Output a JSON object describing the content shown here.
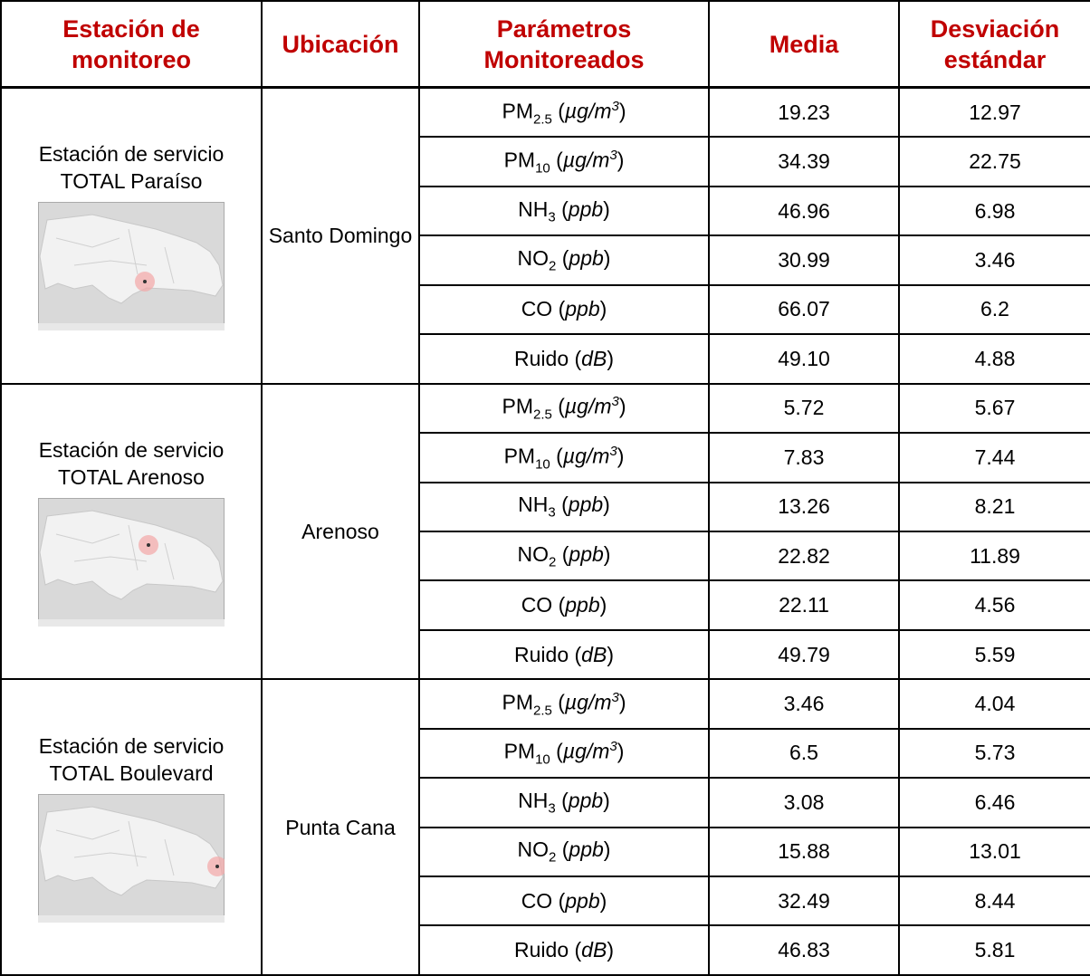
{
  "header": [
    "Estación de monitoreo",
    "Ubicación",
    "Parámetros Monitoreados",
    "Media",
    "Desviación estándar"
  ],
  "stations": [
    {
      "name": "Estación de servicio TOTAL Paraíso",
      "location": "Santo Domingo",
      "measurements": [
        {
          "parameter": [
            {
              "text": "PM"
            },
            {
              "text": "2.5",
              "style": "sub"
            },
            {
              "text": " ("
            },
            {
              "text": "µg/m",
              "style": "i"
            },
            {
              "text": "3",
              "style": "sup"
            },
            {
              "text": ")"
            }
          ],
          "mean": "19.23",
          "sd": "12.97"
        },
        {
          "parameter": [
            {
              "text": "PM"
            },
            {
              "text": "10",
              "style": "sub"
            },
            {
              "text": " ("
            },
            {
              "text": "µg/m",
              "style": "i"
            },
            {
              "text": "3",
              "style": "sup"
            },
            {
              "text": ")"
            }
          ],
          "mean": "34.39",
          "sd": "22.75"
        },
        {
          "parameter": [
            {
              "text": "NH"
            },
            {
              "text": "3",
              "style": "sub"
            },
            {
              "text": " ("
            },
            {
              "text": "ppb",
              "style": "i"
            },
            {
              "text": ")"
            }
          ],
          "mean": "46.96",
          "sd": "6.98"
        },
        {
          "parameter": [
            {
              "text": "NO"
            },
            {
              "text": "2",
              "style": "sub"
            },
            {
              "text": " ("
            },
            {
              "text": "ppb",
              "style": "i"
            },
            {
              "text": ")"
            }
          ],
          "mean": "30.99",
          "sd": "3.46"
        },
        {
          "parameter": [
            {
              "text": "CO ("
            },
            {
              "text": "ppb",
              "style": "i"
            },
            {
              "text": ")"
            }
          ],
          "mean": "66.07",
          "sd": "6.2"
        },
        {
          "parameter": [
            {
              "text": "Ruido ("
            },
            {
              "text": "dB",
              "style": "i"
            },
            {
              "text": ")"
            }
          ],
          "mean": "49.10",
          "sd": "4.88"
        }
      ]
    },
    {
      "name": "Estación de servicio TOTAL Arenoso",
      "location": "Arenoso",
      "measurements": [
        {
          "parameter": [
            {
              "text": "PM"
            },
            {
              "text": "2.5",
              "style": "sub"
            },
            {
              "text": " ("
            },
            {
              "text": "µg/m",
              "style": "i"
            },
            {
              "text": "3",
              "style": "sup"
            },
            {
              "text": ")"
            }
          ],
          "mean": "5.72",
          "sd": "5.67"
        },
        {
          "parameter": [
            {
              "text": "PM"
            },
            {
              "text": "10",
              "style": "sub"
            },
            {
              "text": " ("
            },
            {
              "text": "µg/m",
              "style": "i"
            },
            {
              "text": "3",
              "style": "sup"
            },
            {
              "text": ")"
            }
          ],
          "mean": "7.83",
          "sd": "7.44"
        },
        {
          "parameter": [
            {
              "text": "NH"
            },
            {
              "text": "3",
              "style": "sub"
            },
            {
              "text": " ("
            },
            {
              "text": "ppb",
              "style": "i"
            },
            {
              "text": ")"
            }
          ],
          "mean": "13.26",
          "sd": "8.21"
        },
        {
          "parameter": [
            {
              "text": "NO"
            },
            {
              "text": "2",
              "style": "sub"
            },
            {
              "text": " ("
            },
            {
              "text": "ppb",
              "style": "i"
            },
            {
              "text": ")"
            }
          ],
          "mean": "22.82",
          "sd": "11.89"
        },
        {
          "parameter": [
            {
              "text": "CO ("
            },
            {
              "text": "ppb",
              "style": "i"
            },
            {
              "text": ")"
            }
          ],
          "mean": "22.11",
          "sd": "4.56"
        },
        {
          "parameter": [
            {
              "text": "Ruido ("
            },
            {
              "text": "dB",
              "style": "i"
            },
            {
              "text": ")"
            }
          ],
          "mean": "49.79",
          "sd": "5.59"
        }
      ]
    },
    {
      "name": "Estación de servicio TOTAL Boulevard",
      "location": "Punta Cana",
      "measurements": [
        {
          "parameter": [
            {
              "text": "PM"
            },
            {
              "text": "2.5",
              "style": "sub"
            },
            {
              "text": " ("
            },
            {
              "text": "µg/m",
              "style": "i"
            },
            {
              "text": "3",
              "style": "sup"
            },
            {
              "text": ")"
            }
          ],
          "mean": "3.46",
          "sd": "4.04"
        },
        {
          "parameter": [
            {
              "text": "PM"
            },
            {
              "text": "10",
              "style": "sub"
            },
            {
              "text": " ("
            },
            {
              "text": "µg/m",
              "style": "i"
            },
            {
              "text": "3",
              "style": "sup"
            },
            {
              "text": ")"
            }
          ],
          "mean": "6.5",
          "sd": "5.73"
        },
        {
          "parameter": [
            {
              "text": "NH"
            },
            {
              "text": "3",
              "style": "sub"
            },
            {
              "text": " ("
            },
            {
              "text": "ppb",
              "style": "i"
            },
            {
              "text": ")"
            }
          ],
          "mean": "3.08",
          "sd": "6.46"
        },
        {
          "parameter": [
            {
              "text": "NO"
            },
            {
              "text": "2",
              "style": "sub"
            },
            {
              "text": " ("
            },
            {
              "text": "ppb",
              "style": "i"
            },
            {
              "text": ")"
            }
          ],
          "mean": "15.88",
          "sd": "13.01"
        },
        {
          "parameter": [
            {
              "text": "CO ("
            },
            {
              "text": "ppb",
              "style": "i"
            },
            {
              "text": ")"
            }
          ],
          "mean": "32.49",
          "sd": "8.44"
        },
        {
          "parameter": [
            {
              "text": "Ruido ("
            },
            {
              "text": "dB",
              "style": "i"
            },
            {
              "text": ")"
            }
          ],
          "mean": "46.83",
          "sd": "5.81"
        }
      ]
    }
  ]
}
